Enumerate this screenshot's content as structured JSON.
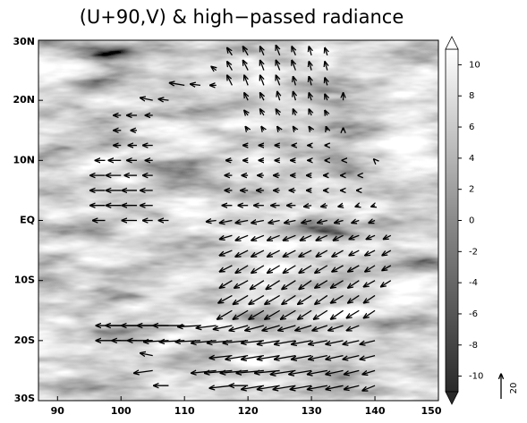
{
  "chart_data": {
    "type": "quiver",
    "title": "(U+90,V) & high−passed radiance",
    "xlim": [
      87,
      150
    ],
    "ylim": [
      -30,
      30
    ],
    "xticks": [
      90,
      100,
      110,
      120,
      130,
      140,
      150
    ],
    "yticks": [
      {
        "value": 30,
        "label": "30N"
      },
      {
        "value": 20,
        "label": "20N"
      },
      {
        "value": 10,
        "label": "10N"
      },
      {
        "value": 0,
        "label": "EQ"
      },
      {
        "value": -10,
        "label": "10S"
      },
      {
        "value": -20,
        "label": "20S"
      },
      {
        "value": -30,
        "label": "30S"
      }
    ],
    "colorbar": {
      "lim": [
        -11,
        11
      ],
      "ticks": [
        -10,
        -8,
        -6,
        -4,
        -2,
        0,
        2,
        4,
        6,
        8,
        10
      ]
    },
    "reference_vector": 20,
    "rows": [
      {
        "lat": 27.5,
        "lon": [
          117.5,
          120,
          122.5,
          125,
          127.5,
          130,
          132.5
        ],
        "u": [
          -4,
          -4,
          -3,
          -3,
          -3,
          -2,
          -2
        ],
        "v": [
          6,
          7,
          7,
          8,
          7,
          7,
          6
        ]
      },
      {
        "lat": 25,
        "lon": [
          115,
          117.5,
          120,
          122.5,
          125,
          127.5,
          130,
          132.5
        ],
        "u": [
          -4,
          -4,
          -4,
          -3,
          -3,
          -3,
          -2,
          -2
        ],
        "v": [
          3,
          7,
          8,
          8,
          8,
          8,
          7,
          7
        ]
      },
      {
        "lat": 22.5,
        "lon": [
          110,
          112.5,
          115,
          117.5,
          120,
          122.5,
          125,
          127.5,
          130,
          132.5
        ],
        "u": [
          -12,
          -8,
          -5,
          -4,
          -3,
          -3,
          -3,
          -2,
          -2,
          -2
        ],
        "v": [
          2,
          1,
          0,
          8,
          8,
          8,
          8,
          7,
          7,
          6
        ]
      },
      {
        "lat": 20,
        "lon": [
          105,
          107.5,
          120,
          122.5,
          125,
          127.5,
          130,
          132.5,
          135
        ],
        "u": [
          -10,
          -8,
          -3,
          -3,
          -2,
          -2,
          -2,
          -2,
          0
        ],
        "v": [
          2,
          1,
          6,
          6,
          7,
          7,
          6,
          5,
          6
        ]
      },
      {
        "lat": 17.5,
        "lon": [
          100,
          102.5,
          105,
          120,
          122.5,
          125,
          127.5,
          130,
          132.5
        ],
        "u": [
          -6,
          -8,
          -6,
          -3,
          -3,
          -3,
          -2,
          -2,
          -2
        ],
        "v": [
          0,
          0,
          0,
          4,
          5,
          5,
          5,
          5,
          4
        ]
      },
      {
        "lat": 15,
        "lon": [
          100,
          102.5,
          120,
          122.5,
          125,
          127.5,
          130,
          132.5,
          135
        ],
        "u": [
          -6,
          -5,
          -2,
          -2,
          -2,
          -2,
          -2,
          -1,
          0
        ],
        "v": [
          0,
          0,
          3,
          3,
          3,
          3,
          3,
          3,
          2
        ]
      },
      {
        "lat": 12.5,
        "lon": [
          100,
          102.5,
          105,
          120,
          122.5,
          125,
          127.5,
          130,
          132.5
        ],
        "u": [
          -6,
          -7,
          -8,
          -4,
          -4,
          -4,
          -3,
          -3,
          -2
        ],
        "v": [
          0,
          0,
          0,
          0,
          0,
          0,
          0,
          0,
          0
        ]
      },
      {
        "lat": 10,
        "lon": [
          97.5,
          100,
          102.5,
          105,
          117.5,
          120,
          122.5,
          125,
          127.5,
          130,
          132.5,
          135,
          140
        ],
        "u": [
          -8,
          -10,
          -8,
          -6,
          -5,
          -4,
          -4,
          -4,
          -4,
          -3,
          -2,
          -1,
          -1
        ],
        "v": [
          0,
          0,
          0,
          0,
          0,
          0,
          0,
          0,
          0,
          0,
          0,
          0,
          1
        ]
      },
      {
        "lat": 7.5,
        "lon": [
          97.5,
          100,
          102.5,
          105,
          117.5,
          120,
          122.5,
          125,
          127.5,
          130,
          132.5,
          135,
          137.5
        ],
        "u": [
          -12,
          -12,
          -10,
          -8,
          -6,
          -5,
          -5,
          -5,
          -4,
          -4,
          -3,
          -2,
          -1
        ],
        "v": [
          0,
          0,
          0,
          0,
          0,
          0,
          0,
          0,
          0,
          0,
          0,
          0,
          0
        ]
      },
      {
        "lat": 5,
        "lon": [
          97.5,
          100,
          102.5,
          105,
          117.5,
          120,
          122.5,
          125,
          127.5,
          130,
          132.5,
          135,
          137.5
        ],
        "u": [
          -12,
          -12,
          -12,
          -10,
          -6,
          -6,
          -6,
          -5,
          -5,
          -4,
          -3,
          -2,
          -2
        ],
        "v": [
          0,
          0,
          0,
          0,
          0,
          0,
          0,
          0,
          0,
          0,
          0,
          0,
          0
        ]
      },
      {
        "lat": 2.5,
        "lon": [
          97.5,
          100,
          102.5,
          105,
          117.5,
          120,
          122.5,
          125,
          127.5,
          130,
          132.5,
          135,
          137.5,
          140
        ],
        "u": [
          -12,
          -12,
          -12,
          -10,
          -8,
          -8,
          -8,
          -7,
          -7,
          -6,
          -5,
          -4,
          -3,
          -3
        ],
        "v": [
          0,
          0,
          0,
          0,
          0,
          0,
          0,
          0,
          0,
          -1,
          -1,
          -1,
          -1,
          -1
        ]
      },
      {
        "lat": 0,
        "lon": [
          97.5,
          102.5,
          105,
          107.5,
          115,
          117.5,
          120,
          122.5,
          125,
          127.5,
          130,
          132.5,
          135,
          137.5,
          140
        ],
        "u": [
          -10,
          -12,
          -8,
          -8,
          -8,
          -10,
          -10,
          -10,
          -9,
          -9,
          -8,
          -8,
          -7,
          -6,
          -5
        ],
        "v": [
          0,
          0,
          0,
          0,
          -1,
          -2,
          -2,
          -2,
          -2,
          -2,
          -2,
          -2,
          -2,
          -2,
          -2
        ]
      },
      {
        "lat": -2.5,
        "lon": [
          117.5,
          120,
          122.5,
          125,
          127.5,
          130,
          132.5,
          135,
          137.5,
          140,
          142.5
        ],
        "u": [
          -10,
          -10,
          -10,
          -10,
          -10,
          -9,
          -9,
          -8,
          -8,
          -7,
          -6
        ],
        "v": [
          -3,
          -4,
          -4,
          -4,
          -4,
          -4,
          -4,
          -4,
          -3,
          -3,
          -3
        ]
      },
      {
        "lat": -5,
        "lon": [
          117.5,
          120,
          122.5,
          125,
          127.5,
          130,
          132.5,
          135,
          137.5,
          140,
          142.5
        ],
        "u": [
          -10,
          -10,
          -10,
          -10,
          -10,
          -10,
          -9,
          -9,
          -8,
          -8,
          -7
        ],
        "v": [
          -4,
          -5,
          -5,
          -5,
          -5,
          -5,
          -5,
          -5,
          -4,
          -4,
          -4
        ]
      },
      {
        "lat": -7.5,
        "lon": [
          117.5,
          120,
          122.5,
          125,
          127.5,
          130,
          132.5,
          135,
          137.5,
          140,
          142.5
        ],
        "u": [
          -10,
          -10,
          -10,
          -10,
          -10,
          -10,
          -10,
          -9,
          -9,
          -8,
          -7
        ],
        "v": [
          -5,
          -6,
          -6,
          -6,
          -6,
          -6,
          -6,
          -5,
          -5,
          -5,
          -4
        ]
      },
      {
        "lat": -10,
        "lon": [
          117.5,
          120,
          122.5,
          125,
          127.5,
          130,
          132.5,
          135,
          137.5,
          140,
          142.5
        ],
        "u": [
          -10,
          -11,
          -11,
          -11,
          -11,
          -10,
          -10,
          -10,
          -9,
          -9,
          -8
        ],
        "v": [
          -6,
          -6,
          -7,
          -7,
          -7,
          -7,
          -6,
          -6,
          -6,
          -5,
          -5
        ]
      },
      {
        "lat": -12.5,
        "lon": [
          117.5,
          120,
          122.5,
          125,
          127.5,
          130,
          132.5,
          135,
          137.5,
          140
        ],
        "u": [
          -11,
          -12,
          -12,
          -12,
          -11,
          -11,
          -10,
          -10,
          -9,
          -9
        ],
        "v": [
          -6,
          -7,
          -7,
          -7,
          -7,
          -7,
          -7,
          -6,
          -6,
          -6
        ]
      },
      {
        "lat": -15,
        "lon": [
          117.5,
          120,
          122.5,
          125,
          127.5,
          130,
          132.5,
          135,
          137.5,
          140
        ],
        "u": [
          -12,
          -12,
          -12,
          -12,
          -12,
          -11,
          -11,
          -10,
          -10,
          -9
        ],
        "v": [
          -7,
          -7,
          -7,
          -7,
          -7,
          -7,
          -7,
          -7,
          -6,
          -6
        ]
      },
      {
        "lat": -17.5,
        "lon": [
          100,
          102.5,
          105,
          107.5,
          110,
          112.5,
          115,
          117.5,
          120,
          122.5,
          125,
          127.5,
          130,
          132.5,
          135,
          137.5
        ],
        "u": [
          -20,
          -25,
          -25,
          -25,
          -25,
          -18,
          -16,
          -15,
          -15,
          -15,
          -14,
          -14,
          -13,
          -12,
          -12,
          -10
        ],
        "v": [
          0,
          0,
          0,
          0,
          0,
          -1,
          -2,
          -3,
          -4,
          -4,
          -4,
          -4,
          -4,
          -4,
          -4,
          -4
        ]
      },
      {
        "lat": -20,
        "lon": [
          100,
          102.5,
          105,
          107.5,
          110,
          112.5,
          115,
          117.5,
          120,
          122.5,
          125,
          127.5,
          130,
          132.5,
          135,
          137.5,
          140
        ],
        "u": [
          -20,
          -20,
          -20,
          -20,
          -20,
          -20,
          -20,
          -20,
          -20,
          -18,
          -18,
          -17,
          -16,
          -15,
          -14,
          -13,
          -12
        ],
        "v": [
          0,
          0,
          0,
          -1,
          -1,
          -1,
          -2,
          -2,
          -2,
          -2,
          -3,
          -3,
          -3,
          -3,
          -3,
          -3,
          -3
        ]
      },
      {
        "lat": -22.5,
        "lon": [
          105,
          117.5,
          120,
          122.5,
          125,
          127.5,
          130,
          132.5,
          135,
          137.5,
          140
        ],
        "u": [
          -10,
          -18,
          -18,
          -18,
          -18,
          -17,
          -16,
          -15,
          -14,
          -13,
          -12
        ],
        "v": [
          2,
          -2,
          -3,
          -3,
          -3,
          -3,
          -3,
          -3,
          -3,
          -3,
          -3
        ]
      },
      {
        "lat": -25,
        "lon": [
          105,
          115,
          117.5,
          120,
          122.5,
          125,
          127.5,
          130,
          132.5,
          135,
          137.5,
          140
        ],
        "u": [
          -15,
          -20,
          -22,
          -22,
          -22,
          -20,
          -20,
          -18,
          -16,
          -14,
          -12,
          -10
        ],
        "v": [
          -2,
          -2,
          -2,
          -2,
          -2,
          -2,
          -3,
          -3,
          -3,
          -3,
          -3,
          -3
        ]
      },
      {
        "lat": -27.5,
        "lon": [
          107.5,
          117.5,
          120,
          122.5,
          125,
          127.5,
          130,
          132.5,
          135,
          137.5,
          140
        ],
        "u": [
          -12,
          -18,
          -15,
          -18,
          -18,
          -18,
          -17,
          -16,
          -14,
          -12,
          -10
        ],
        "v": [
          0,
          -2,
          0,
          -3,
          -3,
          -3,
          -3,
          -3,
          -3,
          -3,
          -4
        ]
      }
    ]
  }
}
